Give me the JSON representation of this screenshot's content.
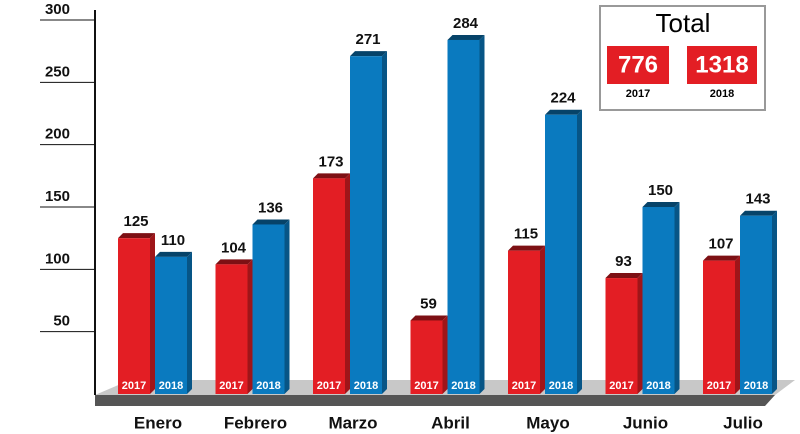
{
  "chart_data": {
    "type": "bar",
    "categories": [
      "Enero",
      "Febrero",
      "Marzo",
      "Abril",
      "Mayo",
      "Junio",
      "Julio"
    ],
    "series": [
      {
        "name": "2017",
        "color": "#e31e24",
        "values": [
          125,
          104,
          173,
          59,
          115,
          93,
          107
        ]
      },
      {
        "name": "2018",
        "color": "#0a7abf",
        "values": [
          110,
          136,
          271,
          284,
          224,
          150,
          143
        ]
      }
    ],
    "ylim": [
      0,
      300
    ],
    "yticks": [
      50,
      100,
      150,
      200,
      250,
      300
    ]
  },
  "totals": {
    "title": "Total",
    "values": [
      776,
      1318
    ]
  }
}
